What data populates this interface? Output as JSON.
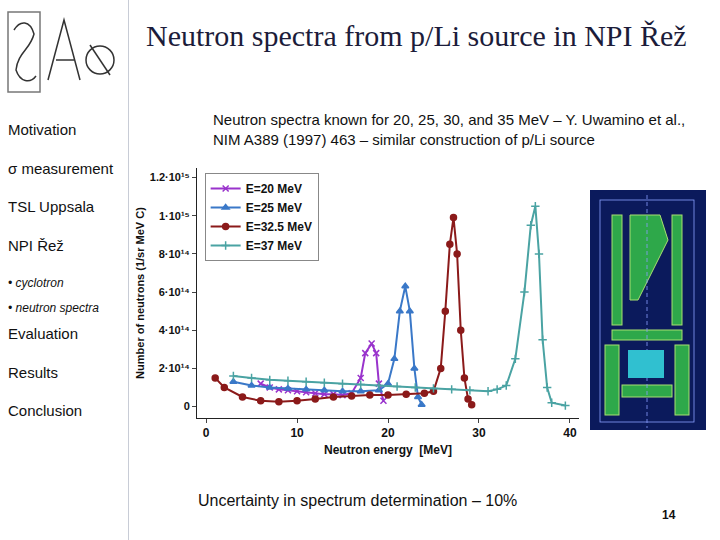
{
  "slide": {
    "title": "Neutron spectra from p/Li source in NPI Řež",
    "subtitle": "Neutron spectra known for 20, 25, 30, and 35 MeV – Y. Uwamino et al., NIM A389 (1997) 463 – similar construction of p/Li source",
    "menu": [
      {
        "text": "Motivation",
        "sub": false
      },
      {
        "text": "σ measurement",
        "sub": false
      },
      {
        "text": "TSL Uppsala",
        "sub": false
      },
      {
        "text": "NPI Řež",
        "sub": false
      },
      {
        "text": "• cyclotron",
        "sub": true
      },
      {
        "text": "• neutron spectra",
        "sub": true
      },
      {
        "text": "Evaluation",
        "sub": false
      },
      {
        "text": "Results",
        "sub": false
      },
      {
        "text": "Conclusion",
        "sub": false
      }
    ],
    "footer": "Uncertainty in spectrum determination – 10%",
    "page": "14"
  },
  "chart_data": {
    "type": "line",
    "x_label": "Neutron energy  [MeV]",
    "y_label": "Number of neutrons (1/sr MeV C)",
    "xlim": [
      -1,
      41
    ],
    "xticks": [
      0,
      10,
      20,
      30,
      40
    ],
    "ylim": [
      -60000000000000,
      1250000000000000
    ],
    "yticks": [
      {
        "value": 0,
        "label": "0"
      },
      {
        "value": 200000000000000,
        "label": "2·10¹⁴"
      },
      {
        "value": 400000000000000,
        "label": "4·10¹⁴"
      },
      {
        "value": 600000000000000,
        "label": "6·10¹⁴"
      },
      {
        "value": 800000000000000,
        "label": "8·10¹⁴"
      },
      {
        "value": 1000000000000000,
        "label": "1·10¹⁵"
      },
      {
        "value": 1200000000000000,
        "label": "1.2·10¹⁵"
      }
    ],
    "grid": false,
    "legend": "upper left",
    "series": [
      {
        "name": "E=20 MeV",
        "color": "#9933cc",
        "marker": "x",
        "x": [
          6,
          7,
          8,
          9,
          10,
          11,
          12,
          13,
          14,
          15,
          16,
          17,
          17.5,
          18.2,
          18.7,
          19,
          19.5
        ],
        "values": [
          120000000000000,
          100000000000000,
          90000000000000,
          85000000000000,
          80000000000000,
          75000000000000,
          70000000000000,
          65000000000000,
          65000000000000,
          60000000000000,
          70000000000000,
          150000000000000,
          280000000000000,
          330000000000000,
          280000000000000,
          120000000000000,
          30000000000000
        ]
      },
      {
        "name": "E=25 MeV",
        "color": "#3a78c8",
        "marker": "triangle-up",
        "x": [
          3,
          5,
          7,
          9,
          11,
          13,
          15,
          17,
          19,
          20,
          20.7,
          21.3,
          21.9,
          22.4,
          22.9,
          23.3,
          23.7
        ],
        "values": [
          130000000000000,
          110000000000000,
          100000000000000,
          95000000000000,
          90000000000000,
          85000000000000,
          80000000000000,
          80000000000000,
          85000000000000,
          120000000000000,
          250000000000000,
          500000000000000,
          630000000000000,
          500000000000000,
          200000000000000,
          50000000000000,
          10000000000000
        ]
      },
      {
        "name": "E=32.5 MeV",
        "color": "#8b1a1a",
        "marker": "circle",
        "x": [
          1,
          2,
          4,
          6,
          8,
          10,
          12,
          14,
          16,
          18,
          20,
          22,
          24,
          25,
          25.8,
          26.3,
          26.8,
          27.2,
          27.6,
          28,
          28.4,
          28.8,
          29.2
        ],
        "values": [
          150000000000000,
          100000000000000,
          50000000000000,
          30000000000000,
          25000000000000,
          30000000000000,
          40000000000000,
          50000000000000,
          55000000000000,
          60000000000000,
          60000000000000,
          65000000000000,
          70000000000000,
          80000000000000,
          200000000000000,
          500000000000000,
          850000000000000,
          990000000000000,
          800000000000000,
          400000000000000,
          150000000000000,
          40000000000000,
          10000000000000
        ]
      },
      {
        "name": "E=37 MeV",
        "color": "#4aa3a3",
        "marker": "cross",
        "x": [
          3,
          5,
          7,
          9,
          11,
          13,
          15,
          17,
          19,
          21,
          23,
          25,
          27,
          29,
          31,
          32,
          33,
          34,
          35,
          35.7,
          36.2,
          36.6,
          37,
          37.5,
          38,
          39.5
        ],
        "values": [
          160000000000000,
          150000000000000,
          140000000000000,
          135000000000000,
          130000000000000,
          125000000000000,
          120000000000000,
          115000000000000,
          110000000000000,
          105000000000000,
          100000000000000,
          95000000000000,
          90000000000000,
          85000000000000,
          80000000000000,
          90000000000000,
          110000000000000,
          250000000000000,
          600000000000000,
          950000000000000,
          1050000000000000,
          800000000000000,
          350000000000000,
          100000000000000,
          20000000000000,
          5000000000000
        ]
      }
    ]
  }
}
